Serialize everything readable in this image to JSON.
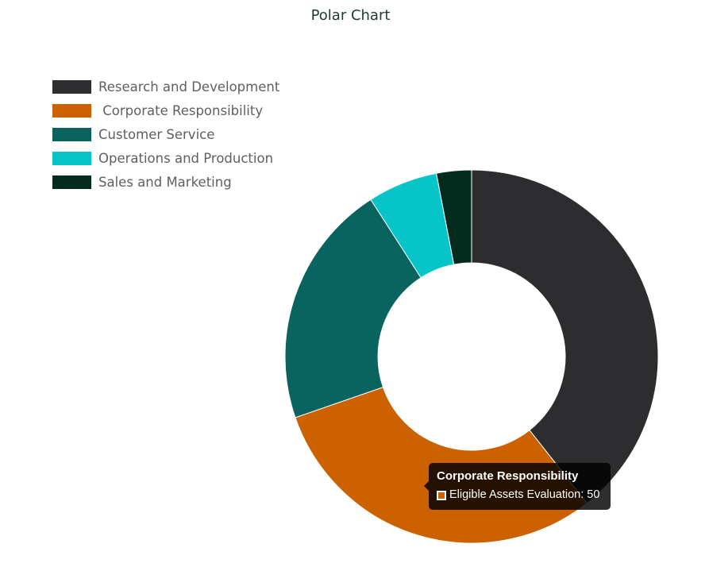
{
  "chart_data": {
    "type": "pie",
    "title": "Polar Chart",
    "categories": [
      "Research and Development",
      " Corporate Responsibility",
      "Customer Service",
      "Operations and Production",
      "Sales and Marketing"
    ],
    "series": [
      {
        "name": "Eligible Assets Evaluation",
        "values": [
          65,
          50,
          35,
          10,
          5
        ]
      }
    ],
    "colors": [
      "#2d2d2f",
      "#cc6100",
      "#09635f",
      "#07c4c8",
      "#032c1f"
    ],
    "legend_position": "top-left",
    "donut": true,
    "tooltip": {
      "title": "Corporate Responsibility",
      "series": "Eligible Assets Evaluation",
      "value": 50,
      "text": "Eligible Assets Evaluation: 50"
    }
  }
}
